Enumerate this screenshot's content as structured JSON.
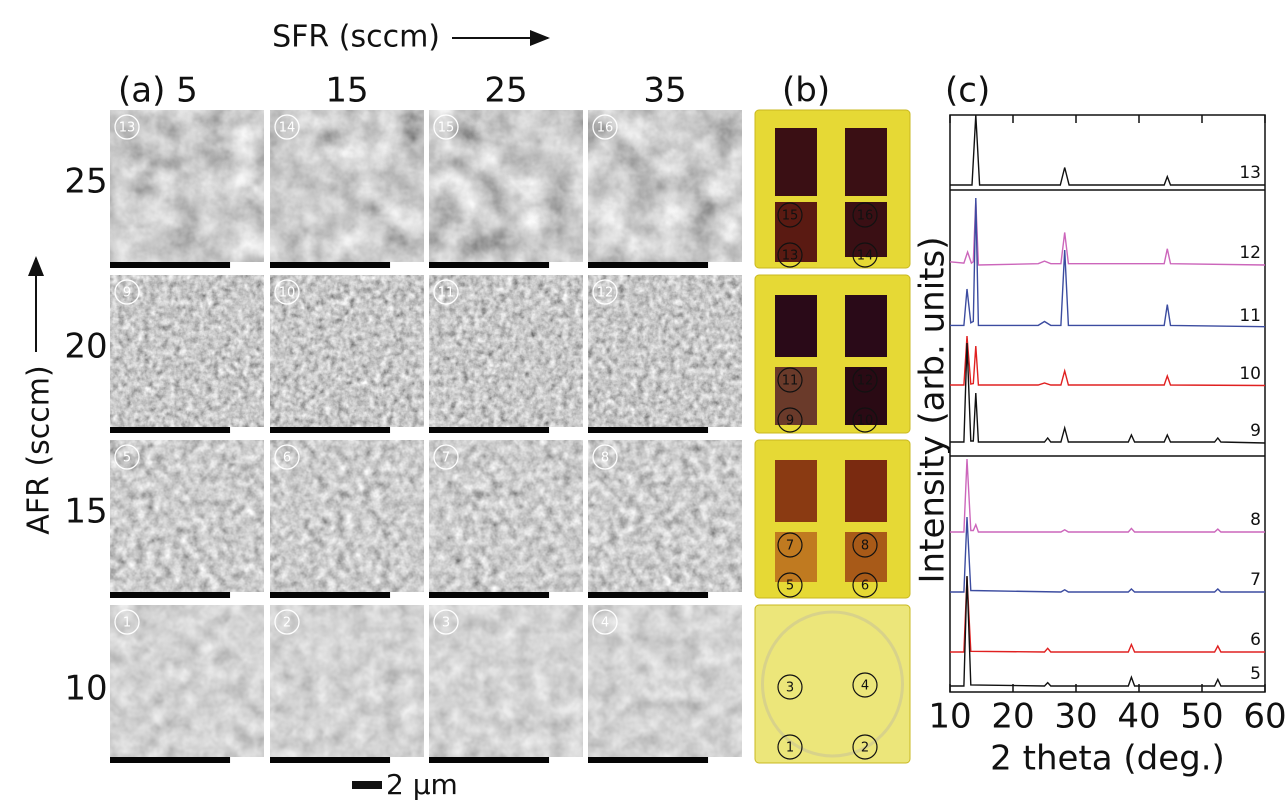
{
  "panel_a": {
    "label": "(a)",
    "x_title": "SFR (sccm)",
    "y_title": "AFR (sccm)",
    "sfr_values": [
      5,
      15,
      25,
      35
    ],
    "afr_values": [
      25,
      20,
      15,
      10
    ],
    "samples": [
      [
        "13",
        "14",
        "15",
        "16"
      ],
      [
        "9",
        "10",
        "11",
        "12"
      ],
      [
        "5",
        "6",
        "7",
        "8"
      ],
      [
        "1",
        "2",
        "3",
        "4"
      ]
    ],
    "scale_bar": "2 µm"
  },
  "panel_b": {
    "label": "(b)",
    "photos": [
      {
        "labels": [
          "15",
          "16",
          "13",
          "14"
        ]
      },
      {
        "labels": [
          "11",
          "12",
          "9",
          "10"
        ]
      },
      {
        "labels": [
          "7",
          "8",
          "5",
          "6"
        ]
      },
      {
        "labels": [
          "3",
          "4",
          "1",
          "2"
        ]
      }
    ]
  },
  "panel_c": {
    "label": "(c)",
    "type": "line",
    "xlabel": "2 theta (deg.)",
    "ylabel": "Intensity (arb. units)",
    "xlim": [
      10,
      60
    ],
    "xticks": [
      10,
      20,
      30,
      40,
      50,
      60
    ],
    "series": [
      {
        "name": "13",
        "color": "#111111",
        "x": [
          10,
          13.5,
          14.1,
          14.7,
          27.5,
          28.2,
          28.9,
          44,
          44.5,
          45,
          60
        ],
        "values": [
          0,
          0,
          100,
          0,
          0,
          25,
          0,
          0,
          12,
          0,
          0
        ]
      },
      {
        "name": "12",
        "color": "#cc66bb",
        "x": [
          10,
          12.2,
          12.8,
          13.4,
          13.7,
          14.1,
          14.5,
          24,
          25,
          26,
          27.6,
          28.2,
          28.8,
          44,
          44.5,
          45,
          60
        ],
        "values": [
          5,
          3,
          20,
          3,
          5,
          100,
          0,
          2,
          6,
          2,
          2,
          50,
          2,
          2,
          25,
          2,
          0
        ]
      },
      {
        "name": "11",
        "color": "#3c4ca0",
        "x": [
          10,
          12.2,
          12.7,
          13.3,
          13.7,
          14.1,
          14.5,
          24,
          25,
          26,
          27.6,
          28.2,
          28.8,
          44,
          44.5,
          45,
          60
        ],
        "values": [
          2,
          2,
          30,
          4,
          5,
          100,
          2,
          2,
          5,
          2,
          2,
          60,
          2,
          2,
          18,
          2,
          1
        ]
      },
      {
        "name": "10",
        "color": "#e02020",
        "x": [
          10,
          12.2,
          12.7,
          13.3,
          13.7,
          14.1,
          14.5,
          24,
          25,
          26,
          27.6,
          28.2,
          28.8,
          44,
          44.5,
          45,
          60
        ],
        "values": [
          2,
          2,
          100,
          4,
          5,
          80,
          2,
          2,
          6,
          2,
          2,
          30,
          2,
          2,
          20,
          2,
          1
        ]
      },
      {
        "name": "9",
        "color": "#111111",
        "x": [
          10,
          12.2,
          12.7,
          13.3,
          13.7,
          14.1,
          14.5,
          25,
          25.5,
          26,
          27.6,
          28.2,
          28.8,
          38.3,
          38.8,
          39.3,
          44,
          44.5,
          45,
          52,
          52.5,
          53,
          60
        ],
        "values": [
          1,
          1,
          100,
          2,
          2,
          50,
          1,
          1,
          5,
          1,
          1,
          15,
          1,
          1,
          8,
          1,
          1,
          8,
          1,
          1,
          5,
          1,
          0
        ]
      },
      {
        "name": "8",
        "color": "#cc66bb",
        "x": [
          10,
          12.2,
          12.7,
          13.3,
          13.7,
          14.1,
          14.5,
          27.6,
          28.2,
          28.8,
          38.3,
          38.8,
          39.3,
          52,
          52.5,
          53,
          60
        ],
        "values": [
          0,
          0,
          100,
          2,
          2,
          10,
          0,
          0,
          3,
          0,
          0,
          5,
          0,
          0,
          4,
          0,
          0
        ]
      },
      {
        "name": "7",
        "color": "#3c4ca0",
        "x": [
          10,
          12.2,
          12.7,
          13.3,
          27.6,
          28.2,
          28.8,
          38.3,
          38.8,
          39.3,
          52,
          52.5,
          53,
          60
        ],
        "values": [
          0,
          0,
          100,
          2,
          0,
          3,
          0,
          0,
          4,
          0,
          0,
          4,
          0,
          0
        ]
      },
      {
        "name": "6",
        "color": "#e02020",
        "x": [
          10,
          12.2,
          12.7,
          13.3,
          25,
          25.5,
          26,
          38.3,
          38.8,
          39.3,
          52,
          52.5,
          53,
          60
        ],
        "values": [
          0,
          0,
          100,
          1,
          0,
          5,
          0,
          0,
          10,
          0,
          0,
          8,
          0,
          0
        ]
      },
      {
        "name": "5",
        "color": "#111111",
        "x": [
          10,
          12.2,
          12.7,
          13.3,
          25,
          25.5,
          26,
          38.3,
          38.8,
          39.3,
          52,
          52.5,
          53,
          60
        ],
        "values": [
          0,
          0,
          100,
          1,
          0,
          3,
          0,
          0,
          8,
          0,
          0,
          6,
          0,
          0
        ]
      }
    ]
  }
}
